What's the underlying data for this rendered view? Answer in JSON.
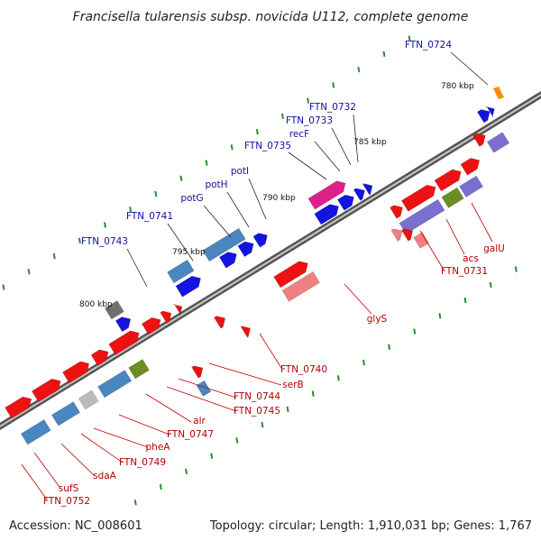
{
  "title": "Francisella tularensis subsp. novicida U112, complete genome",
  "footer": {
    "accession": "Accession: NC_008601",
    "stats": "Topology: circular; Length: 1,910,031 bp; Genes: 1,767"
  },
  "colors": {
    "red": "#ee1111",
    "pink": "#f08080",
    "steel": "#4a86c0",
    "blue": "#1414e0",
    "magenta": "#e0208a",
    "olive": "#6b8e23",
    "purple": "#7b6fd0",
    "gray": "#707070",
    "lightgray": "#bbbbbb",
    "orange": "#ff8c00",
    "backbone": "#808080",
    "tick": "#2e8b2e",
    "leader": "#222222"
  },
  "tick_labels": [
    {
      "text": "780 kbp"
    },
    {
      "text": "785 kbp"
    },
    {
      "text": "790 kbp"
    },
    {
      "text": "795 kbp"
    },
    {
      "text": "800 kbp"
    }
  ],
  "labels_top": [
    {
      "text": "FTN_0724"
    },
    {
      "text": "FTN_0732"
    },
    {
      "text": "FTN_0733"
    },
    {
      "text": "recF"
    },
    {
      "text": "FTN_0735"
    },
    {
      "text": "potI"
    },
    {
      "text": "potH"
    },
    {
      "text": "potG"
    },
    {
      "text": "FTN_0741"
    },
    {
      "text": "FTN_0743"
    }
  ],
  "labels_bottom": [
    {
      "text": "galU"
    },
    {
      "text": "acs"
    },
    {
      "text": "FTN_0731"
    },
    {
      "text": "glyS"
    },
    {
      "text": "FTN_0740"
    },
    {
      "text": "serB"
    },
    {
      "text": "FTN_0744"
    },
    {
      "text": "FTN_0745"
    },
    {
      "text": "alr"
    },
    {
      "text": "FTN_0747"
    },
    {
      "text": "pheA"
    },
    {
      "text": "FTN_0749"
    },
    {
      "text": "sdaA"
    },
    {
      "text": "sufS"
    },
    {
      "text": "FTN_0752"
    }
  ]
}
